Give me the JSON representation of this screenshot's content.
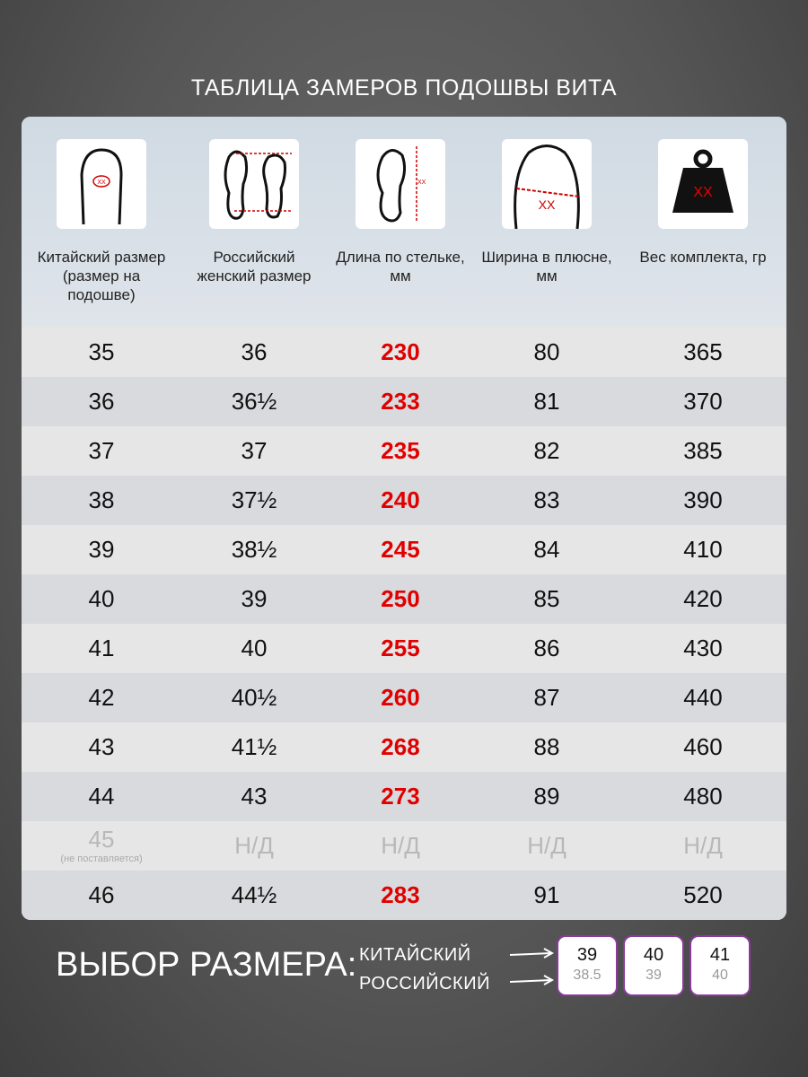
{
  "title": "ТАБЛИЦА ЗАМЕРОВ ПОДОШВЫ ВИТА",
  "icon_mark": "XX",
  "table": {
    "headers": [
      "Китайский размер (размер на подошве)",
      "Российский женский размер",
      "Длина по стельке, мм",
      "Ширина в плюсне, мм",
      "Вес комплекта, гр"
    ],
    "rows": [
      {
        "cells": [
          "35",
          "36",
          "230",
          "80",
          "365"
        ]
      },
      {
        "cells": [
          "36",
          "36½",
          "233",
          "81",
          "370"
        ]
      },
      {
        "cells": [
          "37",
          "37",
          "235",
          "82",
          "385"
        ]
      },
      {
        "cells": [
          "38",
          "37½",
          "240",
          "83",
          "390"
        ]
      },
      {
        "cells": [
          "39",
          "38½",
          "245",
          "84",
          "410"
        ]
      },
      {
        "cells": [
          "40",
          "39",
          "250",
          "85",
          "420"
        ]
      },
      {
        "cells": [
          "41",
          "40",
          "255",
          "86",
          "430"
        ]
      },
      {
        "cells": [
          "42",
          "40½",
          "260",
          "87",
          "440"
        ]
      },
      {
        "cells": [
          "43",
          "41½",
          "268",
          "88",
          "460"
        ]
      },
      {
        "cells": [
          "44",
          "43",
          "273",
          "89",
          "480"
        ]
      },
      {
        "cells": [
          "45",
          "Н/Д",
          "Н/Д",
          "Н/Д",
          "Н/Д"
        ],
        "note": "(не поставляется)"
      },
      {
        "cells": [
          "46",
          "44½",
          "283",
          "91",
          "520"
        ]
      }
    ]
  },
  "footer": {
    "label": "ВЫБОР РАЗМЕРА:",
    "legend": [
      "КИТАЙСКИЙ",
      "РОССИЙСКИЙ"
    ],
    "boxes": [
      {
        "top": "39",
        "bottom": "38.5"
      },
      {
        "top": "40",
        "bottom": "39"
      },
      {
        "top": "41",
        "bottom": "40"
      }
    ]
  }
}
